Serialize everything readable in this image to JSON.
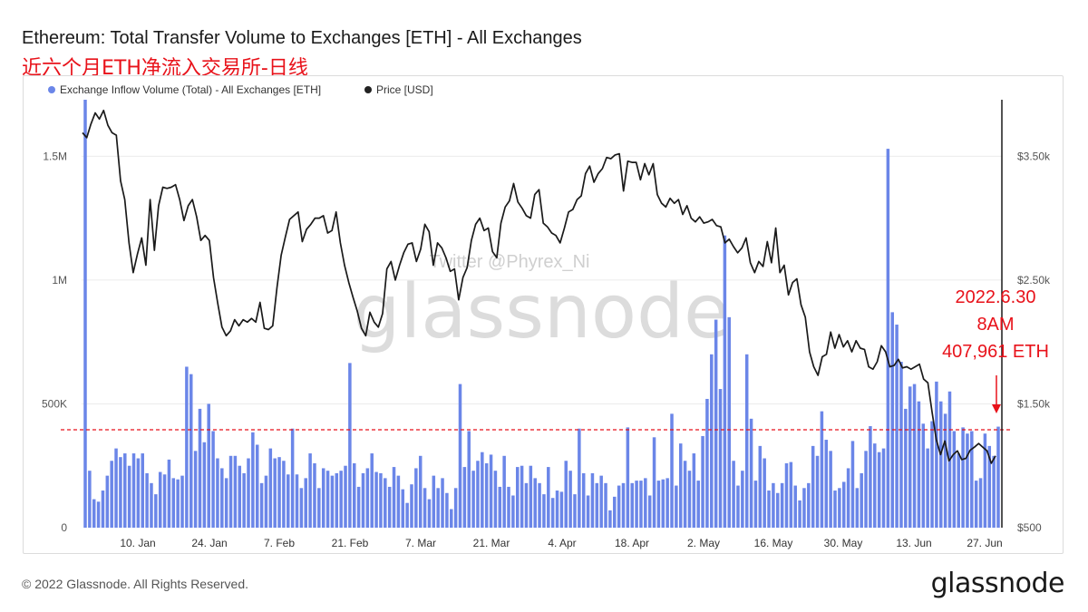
{
  "header": {
    "title": "Ethereum: Total Transfer Volume to Exchanges [ETH] - All Exchanges",
    "subtitle": "近六个月ETH净流入交易所-日线"
  },
  "legend": {
    "inflow_label": "Exchange Inflow Volume (Total) - All Exchanges [ETH]",
    "price_label": "Price [USD]"
  },
  "watermark": {
    "twitter": "Twitter @Phyrex_Ni",
    "brand": "glassnode"
  },
  "annotation": {
    "line1": "2022.6.30",
    "line2": "8AM",
    "line3": "407,961 ETH"
  },
  "footer": {
    "copyright": "© 2022 Glassnode. All Rights Reserved.",
    "brand": "glassnode"
  },
  "colors": {
    "bars": "#6b86e8",
    "price": "#1a1a1a",
    "annotation": "#e8121a"
  },
  "chart_data": {
    "type": "bar",
    "title": "Ethereum: Total Transfer Volume to Exchanges [ETH] - All Exchanges",
    "x_ticks": [
      "10. Jan",
      "24. Jan",
      "7. Feb",
      "21. Feb",
      "7. Mar",
      "21. Mar",
      "4. Apr",
      "18. Apr",
      "2. May",
      "16. May",
      "30. May",
      "13. Jun",
      "27. Jun"
    ],
    "y_left": {
      "ticks": [
        0,
        500000,
        1000000,
        1500000
      ],
      "tick_labels": [
        "0",
        "500K",
        "1M",
        "1.5M"
      ],
      "range": [
        0,
        1650000
      ]
    },
    "y_right": {
      "ticks": [
        500,
        1500,
        2500,
        3500
      ],
      "tick_labels": [
        "$500",
        "$1.50k",
        "$2.50k",
        "$3.50k"
      ],
      "range": [
        500,
        3800
      ]
    },
    "reference_line_value": 380000,
    "series": [
      {
        "name": "Exchange Inflow Volume (Total) - All Exchanges [ETH]",
        "axis": "left",
        "x_range": [
          "2022-01-01",
          "2022-06-30"
        ],
        "values": [
          1850000,
          230000,
          115000,
          105000,
          150000,
          210000,
          270000,
          320000,
          285000,
          300000,
          250000,
          300000,
          280000,
          300000,
          220000,
          180000,
          135000,
          225000,
          215000,
          275000,
          200000,
          195000,
          210000,
          650000,
          620000,
          310000,
          480000,
          345000,
          500000,
          390000,
          280000,
          240000,
          200000,
          290000,
          290000,
          250000,
          220000,
          280000,
          385000,
          335000,
          180000,
          210000,
          320000,
          280000,
          285000,
          270000,
          215000,
          400000,
          215000,
          160000,
          200000,
          300000,
          260000,
          160000,
          240000,
          230000,
          210000,
          220000,
          230000,
          250000,
          665000,
          260000,
          165000,
          220000,
          240000,
          300000,
          225000,
          220000,
          200000,
          165000,
          245000,
          210000,
          155000,
          100000,
          175000,
          240000,
          290000,
          160000,
          115000,
          210000,
          160000,
          200000,
          140000,
          75000,
          160000,
          580000,
          245000,
          390000,
          230000,
          270000,
          305000,
          260000,
          295000,
          230000,
          165000,
          290000,
          165000,
          130000,
          245000,
          250000,
          180000,
          250000,
          200000,
          180000,
          135000,
          245000,
          120000,
          150000,
          145000,
          270000,
          230000,
          135000,
          400000,
          220000,
          130000,
          220000,
          180000,
          210000,
          180000,
          70000,
          125000,
          170000,
          180000,
          405000,
          180000,
          190000,
          190000,
          200000,
          130000,
          365000,
          190000,
          195000,
          200000,
          460000,
          170000,
          340000,
          270000,
          230000,
          300000,
          190000,
          370000,
          520000,
          700000,
          840000,
          560000,
          1180000,
          850000,
          270000,
          170000,
          230000,
          700000,
          440000,
          190000,
          330000,
          280000,
          150000,
          180000,
          140000,
          180000,
          260000,
          265000,
          170000,
          110000,
          160000,
          180000,
          330000,
          290000,
          470000,
          355000,
          310000,
          150000,
          160000,
          185000,
          240000,
          350000,
          160000,
          220000,
          310000,
          410000,
          340000,
          305000,
          320000,
          1530000,
          870000,
          820000,
          670000,
          480000,
          570000,
          580000,
          510000,
          420000,
          320000,
          430000,
          590000,
          510000,
          460000,
          550000,
          390000,
          300000,
          405000,
          380000,
          390000,
          190000,
          200000,
          380000,
          330000,
          290000,
          407961
        ],
        "_": null
      },
      {
        "name": "Price [USD]",
        "axis": "right",
        "x_range": [
          "2022-01-01",
          "2022-06-30"
        ],
        "values": [
          3690,
          3650,
          3760,
          3850,
          3800,
          3870,
          3750,
          3690,
          3670,
          3300,
          3150,
          2800,
          2560,
          2710,
          2840,
          2620,
          3150,
          2740,
          3100,
          3250,
          3240,
          3250,
          3270,
          3150,
          2980,
          3100,
          3150,
          3010,
          2820,
          2860,
          2820,
          2520,
          2310,
          2120,
          2050,
          2090,
          2180,
          2130,
          2180,
          2160,
          2190,
          2160,
          2320,
          2110,
          2100,
          2130,
          2440,
          2700,
          2850,
          2990,
          3020,
          3050,
          2810,
          2910,
          2950,
          3000,
          3000,
          3020,
          2880,
          2900,
          3050,
          2800,
          2620,
          2480,
          2360,
          2250,
          2110,
          2050,
          2240,
          2160,
          2120,
          2230,
          2590,
          2650,
          2500,
          2620,
          2720,
          2790,
          2800,
          2650,
          2750,
          2950,
          2890,
          2620,
          2800,
          2760,
          2680,
          2570,
          2590,
          2340,
          2520,
          2600,
          2820,
          2950,
          3000,
          2900,
          2920,
          2730,
          2680,
          2960,
          3090,
          3140,
          3280,
          3130,
          3080,
          3020,
          3000,
          3190,
          3230,
          2960,
          2930,
          2880,
          2860,
          2800,
          2920,
          3050,
          3070,
          3150,
          3180,
          3360,
          3420,
          3290,
          3360,
          3400,
          3490,
          3480,
          3510,
          3520,
          3220,
          3460,
          3450,
          3450,
          3310,
          3440,
          3350,
          3440,
          3190,
          3120,
          3090,
          3160,
          3120,
          3150,
          3030,
          3100,
          3000,
          2970,
          3010,
          2960,
          2970,
          2990,
          2940,
          2930,
          2800,
          2830,
          2770,
          2720,
          2760,
          2840,
          2640,
          2560,
          2650,
          2610,
          2810,
          2640,
          2920,
          2560,
          2620,
          2380,
          2480,
          2510,
          2300,
          2200,
          1920,
          1800,
          1730,
          1880,
          1900,
          2080,
          1950,
          2060,
          1960,
          2010,
          1920,
          2010,
          1950,
          1940,
          1800,
          1780,
          1840,
          1970,
          1920,
          1800,
          1810,
          1860,
          1790,
          1800,
          1780,
          1800,
          1820,
          1700,
          1670,
          1430,
          1210,
          1090,
          1200,
          1040,
          1090,
          1120,
          1050,
          1060,
          1125,
          1150,
          1180,
          1150,
          1120,
          1020,
          1080
        ]
      }
    ]
  }
}
